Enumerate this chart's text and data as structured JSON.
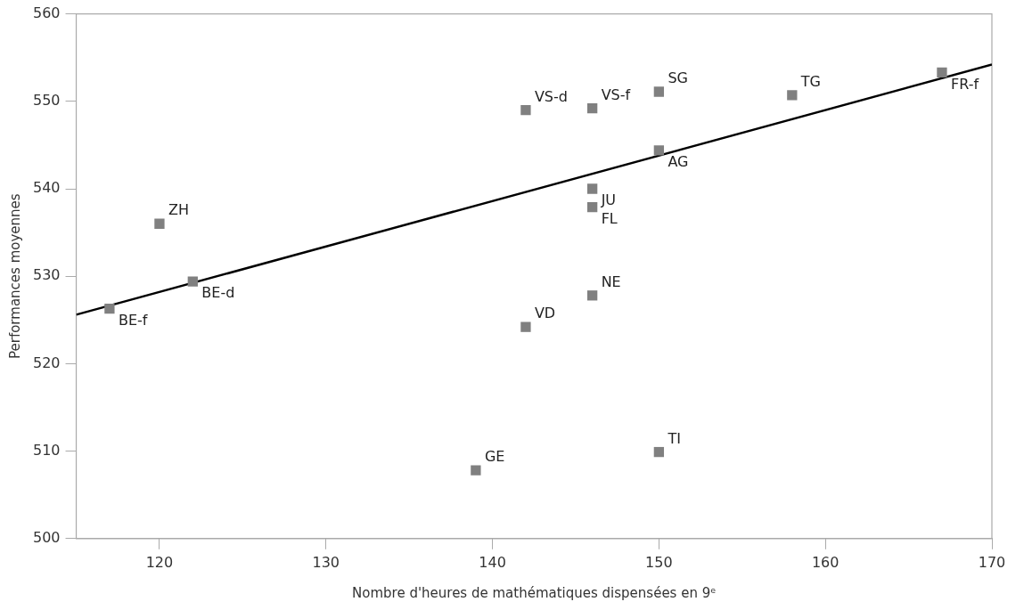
{
  "chart_data": {
    "type": "scatter",
    "xlabel": "Nombre d'heures de mathématiques dispensées en 9ᵉ",
    "ylabel": "Performances moyennes",
    "xlim": [
      115,
      170
    ],
    "xticks": [
      120,
      130,
      140,
      150,
      160,
      170
    ],
    "ylim": [
      500,
      560
    ],
    "yticks": [
      500,
      510,
      520,
      530,
      540,
      550,
      560
    ],
    "grid": false,
    "legend": false,
    "marker": "square",
    "series": [
      {
        "color": "#808080",
        "x": [
          117,
          120,
          122,
          139,
          142,
          142,
          146,
          146,
          146,
          146,
          150,
          150,
          150,
          158,
          167
        ],
        "values": [
          526.3,
          536.0,
          529.4,
          507.8,
          549.0,
          524.2,
          549.2,
          540.0,
          537.9,
          527.8,
          551.1,
          544.4,
          509.9,
          550.7,
          553.3
        ]
      },
      {
        "type": "line",
        "marker": "none",
        "color": "#000000",
        "x": [
          115,
          170
        ],
        "values": [
          525.6,
          554.2
        ]
      }
    ],
    "annotations": [
      {
        "text": "BE-f",
        "x": 117,
        "y": 526.3
      },
      {
        "text": "ZH",
        "x": 120,
        "y": 536.0
      },
      {
        "text": "BE-d",
        "x": 122,
        "y": 529.4
      },
      {
        "text": "GE",
        "x": 139,
        "y": 507.8
      },
      {
        "text": "VS-d",
        "x": 142,
        "y": 549.0
      },
      {
        "text": "VD",
        "x": 142,
        "y": 524.2
      },
      {
        "text": "VS-f",
        "x": 146,
        "y": 549.2
      },
      {
        "text": "JU",
        "x": 146,
        "y": 540.0
      },
      {
        "text": "FL",
        "x": 146,
        "y": 537.9
      },
      {
        "text": "NE",
        "x": 146,
        "y": 527.8
      },
      {
        "text": "SG",
        "x": 150,
        "y": 551.1
      },
      {
        "text": "AG",
        "x": 150,
        "y": 544.4
      },
      {
        "text": "TI",
        "x": 150,
        "y": 509.9
      },
      {
        "text": "TG",
        "x": 158,
        "y": 550.7
      },
      {
        "text": "FR-f",
        "x": 167,
        "y": 553.3
      }
    ]
  }
}
